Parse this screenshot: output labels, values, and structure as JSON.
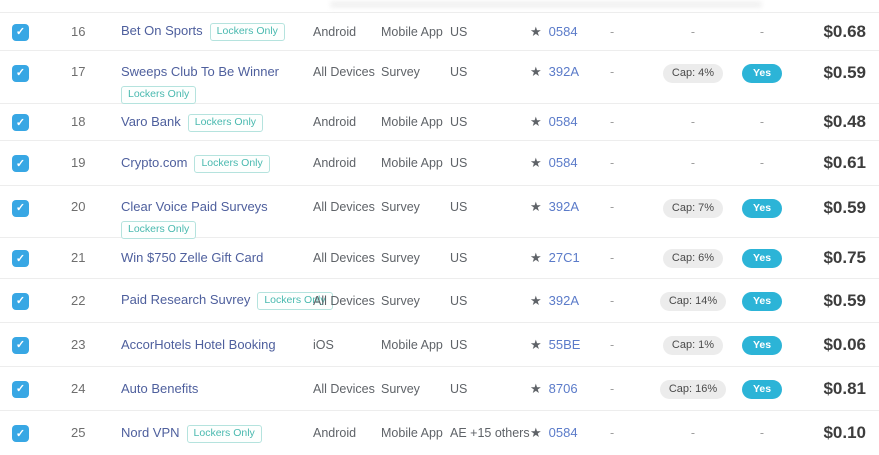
{
  "table": {
    "lockers_badge_label": "Lockers Only",
    "dash": "-",
    "checkmark": "✓",
    "star_icon": "★",
    "rows": [
      {
        "num": "16",
        "name": "Bet On Sports",
        "badge": "inline",
        "device": "Android",
        "type": "Mobile App",
        "country": "US",
        "code": "0584",
        "cap": null,
        "approved": null,
        "price": "$0.68",
        "checked": true
      },
      {
        "num": "17",
        "name": "Sweeps Club To Be Winner",
        "badge": "below",
        "device": "All Devices",
        "type": "Survey",
        "country": "US",
        "code": "392A",
        "cap": "Cap: 4%",
        "approved": "Yes",
        "price": "$0.59",
        "checked": true
      },
      {
        "num": "18",
        "name": "Varo Bank",
        "badge": "inline",
        "device": "Android",
        "type": "Mobile App",
        "country": "US",
        "code": "0584",
        "cap": null,
        "approved": null,
        "price": "$0.48",
        "checked": true
      },
      {
        "num": "19",
        "name": "Crypto.com",
        "badge": "inline",
        "device": "Android",
        "type": "Mobile App",
        "country": "US",
        "code": "0584",
        "cap": null,
        "approved": null,
        "price": "$0.61",
        "checked": true
      },
      {
        "num": "20",
        "name": "Clear Voice Paid Surveys",
        "badge": "below",
        "device": "All Devices",
        "type": "Survey",
        "country": "US",
        "code": "392A",
        "cap": "Cap: 7%",
        "approved": "Yes",
        "price": "$0.59",
        "checked": true
      },
      {
        "num": "21",
        "name": "Win $750 Zelle Gift Card",
        "badge": null,
        "device": "All Devices",
        "type": "Survey",
        "country": "US",
        "code": "27C1",
        "cap": "Cap: 6%",
        "approved": "Yes",
        "price": "$0.75",
        "checked": true
      },
      {
        "num": "22",
        "name": "Paid Research Suvrey",
        "badge": "inline",
        "device": "All Devices",
        "type": "Survey",
        "country": "US",
        "code": "392A",
        "cap": "Cap: 14%",
        "approved": "Yes",
        "price": "$0.59",
        "checked": true
      },
      {
        "num": "23",
        "name": "AccorHotels Hotel Booking",
        "badge": null,
        "device": "iOS",
        "type": "Mobile App",
        "country": "US",
        "code": "55BE",
        "cap": "Cap: 1%",
        "approved": "Yes",
        "price": "$0.06",
        "checked": true
      },
      {
        "num": "24",
        "name": "Auto Benefits",
        "badge": null,
        "device": "All Devices",
        "type": "Survey",
        "country": "US",
        "code": "8706",
        "cap": "Cap: 16%",
        "approved": "Yes",
        "price": "$0.81",
        "checked": true
      },
      {
        "num": "25",
        "name": "Nord VPN",
        "badge": "inline",
        "device": "Android",
        "type": "Mobile App",
        "country": "AE +15 others",
        "code": "0584",
        "cap": null,
        "approved": null,
        "price": "$0.10",
        "checked": true
      }
    ]
  },
  "colors": {
    "checkbox_blue": "#38a7e4",
    "name_link": "#4e5f9d",
    "code_link": "#5b7bc9",
    "lockers_badge": "#49b9af",
    "yes_pill": "#2cb4d7",
    "cap_pill_bg": "#ececec",
    "price_text": "#3d3d3d",
    "row_divider": "#ededed"
  }
}
